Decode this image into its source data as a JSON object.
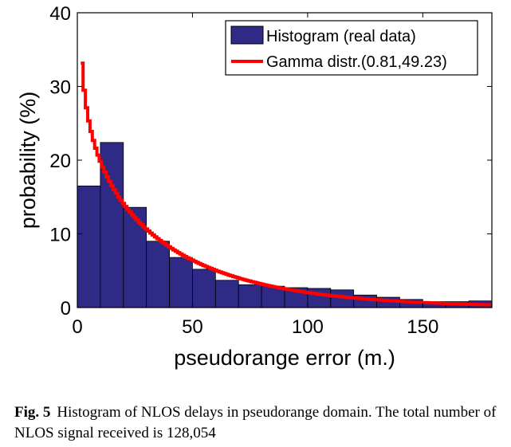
{
  "chart_data": {
    "type": "bar",
    "xlabel": "pseudorange error (m.)",
    "ylabel": "probability (%)",
    "xlim": [
      0,
      180
    ],
    "ylim": [
      0,
      40
    ],
    "xticks": [
      "0",
      "50",
      "100",
      "150"
    ],
    "yticks": [
      "0",
      "10",
      "20",
      "30",
      "40"
    ],
    "bin_width": 10,
    "series": [
      {
        "name": "Histogram (real data)",
        "kind": "histogram",
        "color": "#2e2a86",
        "x": [
          0,
          10,
          20,
          30,
          40,
          50,
          60,
          70,
          80,
          90,
          100,
          110,
          120,
          130,
          140,
          150,
          160,
          170
        ],
        "values": [
          16.5,
          22.4,
          13.6,
          9.0,
          6.8,
          5.2,
          3.7,
          3.1,
          2.9,
          2.7,
          2.6,
          2.4,
          1.7,
          1.4,
          1.1,
          0.8,
          0.8,
          0.9
        ]
      },
      {
        "name": "Gamma distr.(0.81,49.23)",
        "kind": "line",
        "color": "#ff0000",
        "shape": 0.81,
        "scale": 49.23
      }
    ],
    "legend_position": "top-right"
  },
  "caption": {
    "label": "Fig. 5",
    "text": "Histogram of NLOS delays in pseudorange domain. The total number of NLOS signal received is 128,054"
  }
}
